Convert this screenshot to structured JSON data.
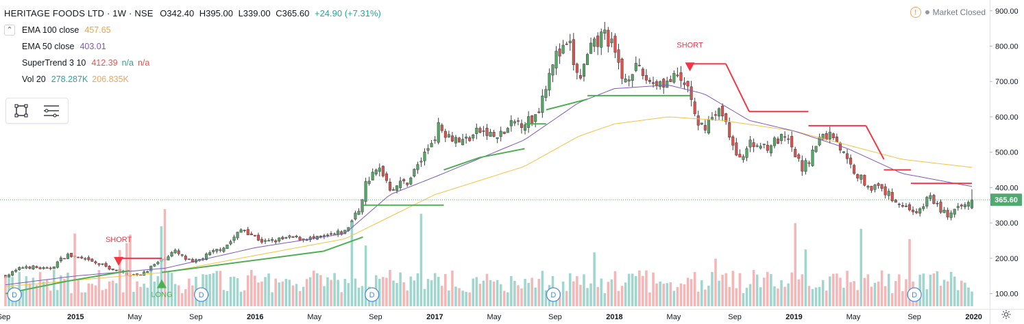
{
  "header": {
    "symbol": "HERITAGE FOODS LTD · 1W · NSE",
    "open": "O342.40",
    "high": "H395.00",
    "low": "L339.00",
    "close": "C365.60",
    "change": "+24.90 (+7.31%)"
  },
  "status": {
    "market": "Market Closed",
    "warn_icon": "exclamation-icon"
  },
  "indicators": [
    {
      "name": "EMA 100 close",
      "v1": "457.65",
      "v2": "",
      "v3": "",
      "c1": "#f2a33a"
    },
    {
      "name": "EMA 50 close",
      "v1": "403.01",
      "v2": "",
      "v3": "",
      "c1": "#7e57c2"
    },
    {
      "name": "SuperTrend 3 10",
      "v1": "412.39",
      "v2": "n/a",
      "v3": "n/a",
      "c1": "#ef5350",
      "c2": "#26a69a",
      "c3": "#ef5350"
    },
    {
      "name": "Vol 20",
      "v1": "278.287K",
      "v2": "206.835K",
      "v3": "",
      "c1": "#26a69a",
      "c2": "#f7a35c"
    }
  ],
  "colors": {
    "up": "#5aa46a",
    "down": "#d9534f",
    "ema100": "#f5c242",
    "ema50": "#7e57c2",
    "st_up": "#4caf50",
    "st_down": "#f23645",
    "vol_up": "#8fcfc6",
    "vol_down": "#f2a9a9",
    "price_label_bg": "#52a871",
    "d_marker": "#4a8bd6"
  },
  "chart_data": {
    "type": "candlestick",
    "interval": "1W",
    "y_axis_ticks": [
      "100.00",
      "200.00",
      "300.00",
      "400.00",
      "500.00",
      "600.00",
      "700.00",
      "800.00",
      "900.00"
    ],
    "ylim": [
      70,
      910
    ],
    "last_price_label": "365.60",
    "x_axis_ticks": [
      {
        "label": "Sep",
        "t": 0.6
      },
      {
        "label": "2015",
        "t": 1
      },
      {
        "label": "May",
        "t": 1.33
      },
      {
        "label": "Sep",
        "t": 1.67
      },
      {
        "label": "2016",
        "t": 2
      },
      {
        "label": "May",
        "t": 2.33
      },
      {
        "label": "Sep",
        "t": 2.67
      },
      {
        "label": "2017",
        "t": 3
      },
      {
        "label": "May",
        "t": 3.33
      },
      {
        "label": "Sep",
        "t": 3.67
      },
      {
        "label": "2018",
        "t": 4
      },
      {
        "label": "May",
        "t": 4.33
      },
      {
        "label": "Sep",
        "t": 4.67
      },
      {
        "label": "2019",
        "t": 5
      },
      {
        "label": "May",
        "t": 5.33
      },
      {
        "label": "Sep",
        "t": 5.67
      },
      {
        "label": "2020",
        "t": 6
      }
    ],
    "t_range": [
      0.61,
      5.99
    ],
    "price_anchors": [
      [
        0.61,
        150
      ],
      [
        0.72,
        178
      ],
      [
        0.85,
        168
      ],
      [
        0.95,
        210
      ],
      [
        1.05,
        195
      ],
      [
        1.15,
        180
      ],
      [
        1.25,
        160
      ],
      [
        1.35,
        150
      ],
      [
        1.45,
        185
      ],
      [
        1.55,
        220
      ],
      [
        1.65,
        185
      ],
      [
        1.72,
        205
      ],
      [
        1.85,
        240
      ],
      [
        1.93,
        285
      ],
      [
        2.0,
        260
      ],
      [
        2.05,
        245
      ],
      [
        2.2,
        258
      ],
      [
        2.35,
        255
      ],
      [
        2.5,
        275
      ],
      [
        2.58,
        340
      ],
      [
        2.62,
        420
      ],
      [
        2.7,
        455
      ],
      [
        2.75,
        400
      ],
      [
        2.85,
        418
      ],
      [
        2.95,
        500
      ],
      [
        3.02,
        570
      ],
      [
        3.15,
        530
      ],
      [
        3.25,
        560
      ],
      [
        3.35,
        540
      ],
      [
        3.45,
        585
      ],
      [
        3.55,
        590
      ],
      [
        3.6,
        660
      ],
      [
        3.65,
        760
      ],
      [
        3.75,
        800
      ],
      [
        3.8,
        700
      ],
      [
        3.86,
        780
      ],
      [
        3.95,
        840
      ],
      [
        4.0,
        780
      ],
      [
        4.05,
        700
      ],
      [
        4.1,
        740
      ],
      [
        4.2,
        700
      ],
      [
        4.3,
        700
      ],
      [
        4.35,
        705
      ],
      [
        4.42,
        680
      ],
      [
        4.46,
        560
      ],
      [
        4.53,
        590
      ],
      [
        4.6,
        620
      ],
      [
        4.68,
        480
      ],
      [
        4.75,
        520
      ],
      [
        4.85,
        520
      ],
      [
        4.95,
        540
      ],
      [
        5.05,
        450
      ],
      [
        5.15,
        545
      ],
      [
        5.22,
        550
      ],
      [
        5.3,
        470
      ],
      [
        5.4,
        410
      ],
      [
        5.5,
        390
      ],
      [
        5.6,
        350
      ],
      [
        5.7,
        330
      ],
      [
        5.75,
        380
      ],
      [
        5.8,
        345
      ],
      [
        5.86,
        320
      ],
      [
        5.92,
        340
      ],
      [
        5.99,
        365
      ]
    ],
    "ema100_anchors": [
      [
        0.61,
        120
      ],
      [
        1.0,
        138
      ],
      [
        1.5,
        160
      ],
      [
        2.0,
        208
      ],
      [
        2.5,
        255
      ],
      [
        2.8,
        330
      ],
      [
        3.0,
        380
      ],
      [
        3.5,
        460
      ],
      [
        3.8,
        545
      ],
      [
        4.0,
        580
      ],
      [
        4.3,
        600
      ],
      [
        4.6,
        590
      ],
      [
        5.0,
        560
      ],
      [
        5.3,
        520
      ],
      [
        5.6,
        480
      ],
      [
        5.99,
        457
      ]
    ],
    "ema50_anchors": [
      [
        0.61,
        125
      ],
      [
        1.0,
        150
      ],
      [
        1.5,
        172
      ],
      [
        2.0,
        230
      ],
      [
        2.5,
        270
      ],
      [
        2.75,
        380
      ],
      [
        3.0,
        430
      ],
      [
        3.5,
        535
      ],
      [
        3.8,
        640
      ],
      [
        4.0,
        680
      ],
      [
        4.3,
        690
      ],
      [
        4.5,
        665
      ],
      [
        4.75,
        590
      ],
      [
        5.0,
        560
      ],
      [
        5.3,
        510
      ],
      [
        5.6,
        440
      ],
      [
        5.99,
        403
      ]
    ],
    "supertrend_steps": [
      {
        "t0": 0.61,
        "t1": 0.95,
        "v0": 100,
        "v1": 135,
        "dir": "up"
      },
      {
        "t0": 0.95,
        "t1": 1.3,
        "v0": 135,
        "v1": 165,
        "dir": "up"
      },
      {
        "t0": 1.24,
        "t1": 1.48,
        "v0": 200,
        "v1": 200,
        "dir": "down"
      },
      {
        "t0": 1.48,
        "t1": 2.38,
        "v0": 160,
        "v1": 220,
        "dir": "up"
      },
      {
        "t0": 2.38,
        "t1": 2.6,
        "v0": 220,
        "v1": 260,
        "dir": "up"
      },
      {
        "t0": 2.6,
        "t1": 2.75,
        "v0": 350,
        "v1": 350,
        "dir": "up"
      },
      {
        "t0": 2.75,
        "t1": 3.05,
        "v0": 350,
        "v1": 350,
        "dir": "up"
      },
      {
        "t0": 3.05,
        "t1": 3.25,
        "v0": 450,
        "v1": 485,
        "dir": "up"
      },
      {
        "t0": 3.25,
        "t1": 3.5,
        "v0": 485,
        "v1": 510,
        "dir": "up"
      },
      {
        "t0": 3.5,
        "t1": 3.62,
        "v0": 580,
        "v1": 580,
        "dir": "up"
      },
      {
        "t0": 3.62,
        "t1": 3.85,
        "v0": 620,
        "v1": 650,
        "dir": "up"
      },
      {
        "t0": 3.85,
        "t1": 4.42,
        "v0": 660,
        "v1": 660,
        "dir": "up"
      },
      {
        "t0": 4.42,
        "t1": 4.62,
        "v0": 750,
        "v1": 750,
        "dir": "down"
      },
      {
        "t0": 4.62,
        "t1": 4.75,
        "v0": 750,
        "v1": 615,
        "dir": "down"
      },
      {
        "t0": 4.75,
        "t1": 5.08,
        "v0": 615,
        "v1": 615,
        "dir": "down"
      },
      {
        "t0": 5.08,
        "t1": 5.4,
        "v0": 575,
        "v1": 575,
        "dir": "down"
      },
      {
        "t0": 5.4,
        "t1": 5.5,
        "v0": 575,
        "v1": 480,
        "dir": "down"
      },
      {
        "t0": 5.5,
        "t1": 5.65,
        "v0": 450,
        "v1": 450,
        "dir": "down"
      },
      {
        "t0": 5.65,
        "t1": 5.99,
        "v0": 412,
        "v1": 412,
        "dir": "down"
      }
    ],
    "signals": [
      {
        "label": "SHORT",
        "t": 1.24,
        "price": 200,
        "type": "short"
      },
      {
        "label": "LONG",
        "t": 1.48,
        "price": 160,
        "type": "long"
      },
      {
        "label": "SHORT",
        "t": 4.42,
        "price": 750,
        "type": "short"
      }
    ],
    "dividend_markers": [
      {
        "label": "D",
        "t": 0.66
      },
      {
        "label": "D",
        "t": 1.7
      },
      {
        "label": "D",
        "t": 2.65
      },
      {
        "label": "D",
        "t": 3.66
      },
      {
        "label": "D",
        "t": 5.67
      }
    ],
    "volume_ylim": [
      0,
      100
    ]
  }
}
